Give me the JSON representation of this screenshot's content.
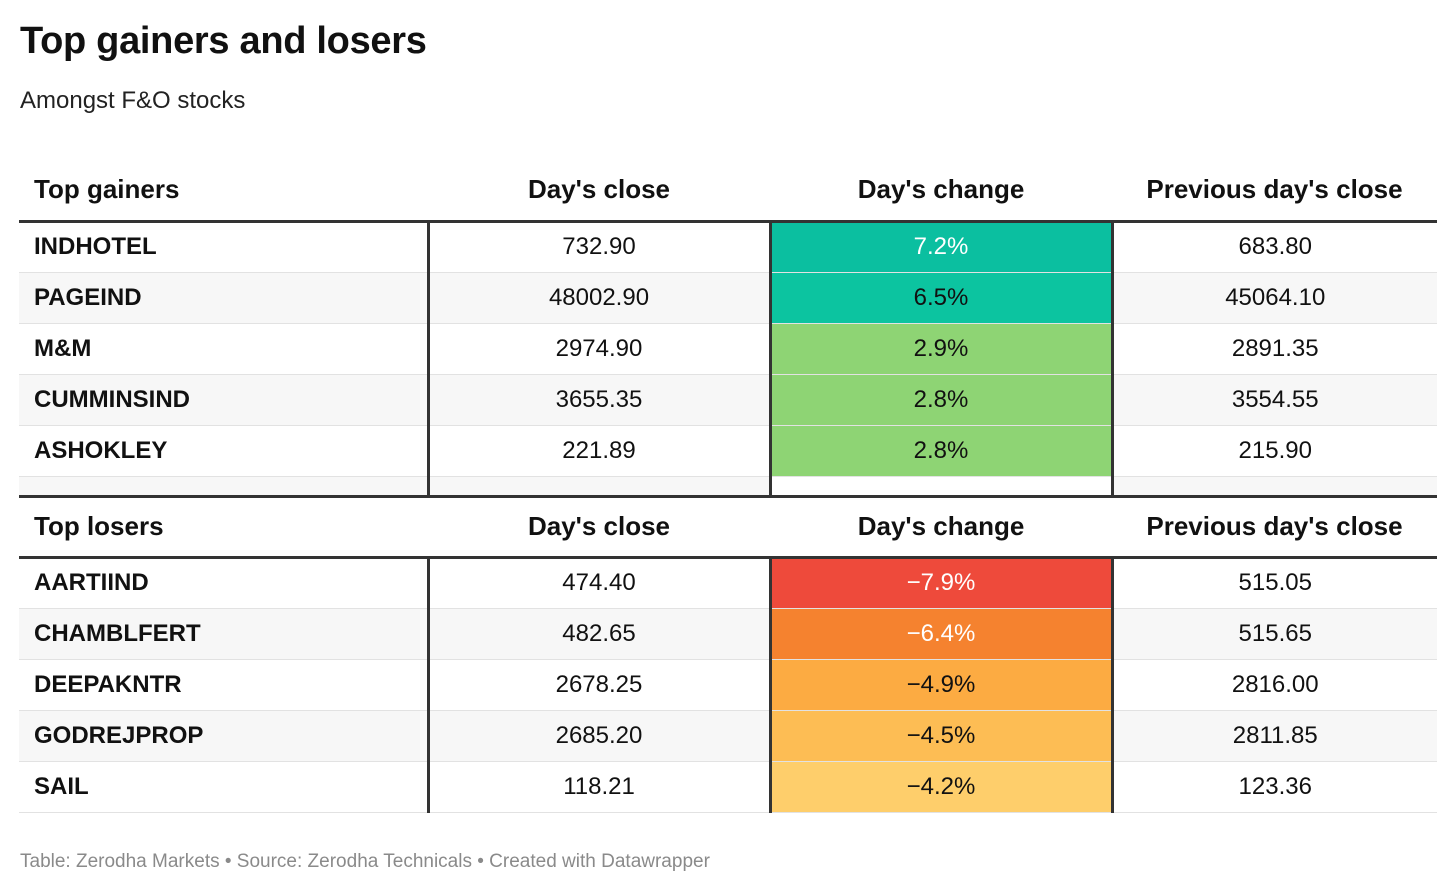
{
  "title": "Top gainers and losers",
  "subtitle": "Amongst F&O stocks",
  "footer": "Table: Zerodha Markets • Source: Zerodha Technicals • Created with Datawrapper",
  "chart_data": {
    "type": "table",
    "title": "Top gainers and losers",
    "subtitle": "Amongst F&O stocks",
    "groups": [
      {
        "headers": [
          "Top gainers",
          "Day's close",
          "Day's change",
          "Previous day's close"
        ],
        "rows": [
          {
            "name": "INDHOTEL",
            "close": "732.90",
            "change": "7.2%",
            "prev": "683.80",
            "change_color": "#0bbfa0",
            "light_text": true
          },
          {
            "name": "PAGEIND",
            "close": "48002.90",
            "change": "6.5%",
            "prev": "45064.10",
            "change_color": "#0cc4a0",
            "light_text": false
          },
          {
            "name": "M&M",
            "close": "2974.90",
            "change": "2.9%",
            "prev": "2891.35",
            "change_color": "#8ed474",
            "light_text": false
          },
          {
            "name": "CUMMINSIND",
            "close": "3655.35",
            "change": "2.8%",
            "prev": "3554.55",
            "change_color": "#8ed474",
            "light_text": false
          },
          {
            "name": "ASHOKLEY",
            "close": "221.89",
            "change": "2.8%",
            "prev": "215.90",
            "change_color": "#8ed474",
            "light_text": false
          }
        ]
      },
      {
        "headers": [
          "Top losers",
          "Day's close",
          "Day's change",
          "Previous day's close"
        ],
        "rows": [
          {
            "name": "AARTIIND",
            "close": "474.40",
            "change": "−7.9%",
            "prev": "515.05",
            "change_color": "#ee4a3b",
            "light_text": true
          },
          {
            "name": "CHAMBLFERT",
            "close": "482.65",
            "change": "−6.4%",
            "prev": "515.65",
            "change_color": "#f5822f",
            "light_text": true
          },
          {
            "name": "DEEPAKNTR",
            "close": "2678.25",
            "change": "−4.9%",
            "prev": "2816.00",
            "change_color": "#fcab42",
            "light_text": false
          },
          {
            "name": "GODREJPROP",
            "close": "2685.20",
            "change": "−4.5%",
            "prev": "2811.85",
            "change_color": "#fdbd54",
            "light_text": false
          },
          {
            "name": "SAIL",
            "close": "118.21",
            "change": "−4.2%",
            "prev": "123.36",
            "change_color": "#fece6b",
            "light_text": false
          }
        ]
      }
    ]
  }
}
